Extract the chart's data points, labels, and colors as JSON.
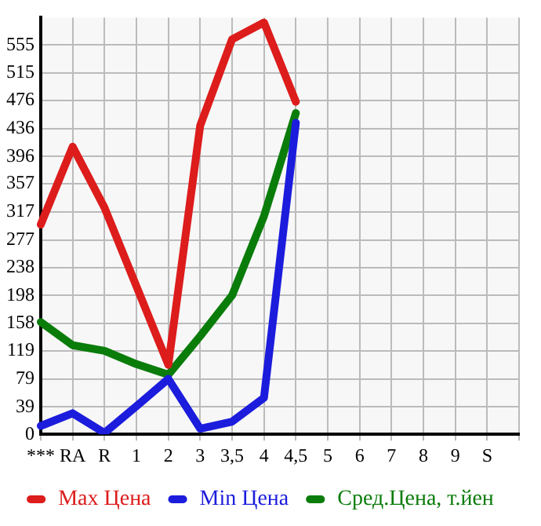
{
  "chart_data": {
    "type": "line",
    "categories": [
      "***",
      "RA",
      "R",
      "1",
      "2",
      "3",
      "3,5",
      "4",
      "4,5",
      "5",
      "6",
      "7",
      "8",
      "9",
      "S",
      null
    ],
    "series": [
      {
        "name": "Max Цена",
        "color": "#dd1c1c",
        "values": [
          299,
          410,
          323,
          211,
          99,
          440,
          563,
          587,
          474,
          null,
          null,
          null,
          null,
          null,
          null,
          null
        ]
      },
      {
        "name": "Min Цена",
        "color": "#1c1cdd",
        "values": [
          12,
          30,
          2,
          40,
          79,
          8,
          18,
          52,
          444,
          null,
          null,
          null,
          null,
          null,
          null,
          null
        ]
      },
      {
        "name": "Сред.Цена, т.йен",
        "color": "#0a7c0a",
        "values": [
          160,
          127,
          119,
          100,
          85,
          140,
          198,
          311,
          458,
          null,
          null,
          null,
          null,
          null,
          null,
          null
        ]
      }
    ],
    "ylim": [
      0,
      594
    ],
    "yticks": [
      0,
      39,
      79,
      119,
      158,
      198,
      238,
      277,
      317,
      357,
      396,
      436,
      476,
      515,
      555
    ],
    "grid": true,
    "legend": "bottom",
    "marker": "none",
    "line_style": "solid"
  }
}
